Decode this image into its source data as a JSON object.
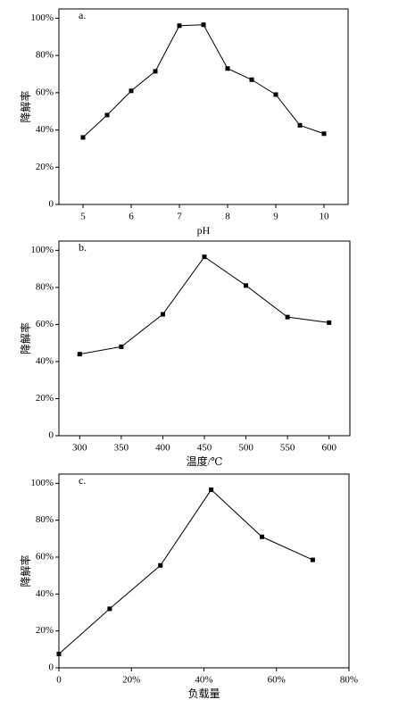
{
  "chart_data": [
    {
      "type": "line",
      "annotation": "a.",
      "xlabel": "pH",
      "ylabel": "降解率",
      "color": "#000000",
      "x": [
        5,
        5.5,
        6,
        6.5,
        7,
        7.5,
        8,
        8.5,
        9,
        9.5,
        10
      ],
      "values": [
        36,
        48,
        61,
        71.5,
        96,
        96.5,
        73,
        67,
        59,
        42.5,
        38
      ],
      "xlim": [
        4.5,
        10.5
      ],
      "xticks": [
        5,
        6,
        7,
        8,
        9,
        10
      ],
      "ylim": [
        0,
        105
      ],
      "yticks": [
        0,
        {
          "value": 20,
          "label": "20%"
        },
        {
          "value": 40,
          "label": "40%"
        },
        {
          "value": 60,
          "label": "60%"
        },
        {
          "value": 80,
          "label": "80%"
        },
        {
          "value": 100,
          "label": "100%"
        }
      ]
    },
    {
      "type": "line",
      "annotation": "b.",
      "xlabel": "温度/℃",
      "ylabel": "降解率",
      "color": "#000000",
      "x": [
        300,
        350,
        400,
        450,
        500,
        550,
        600
      ],
      "values": [
        44,
        48,
        65.5,
        96.5,
        81,
        64,
        61
      ],
      "xlim": [
        275,
        625
      ],
      "xticks": [
        300,
        350,
        400,
        450,
        500,
        550,
        600
      ],
      "ylim": [
        0,
        105
      ],
      "yticks": [
        0,
        {
          "value": 20,
          "label": "20%"
        },
        {
          "value": 40,
          "label": "40%"
        },
        {
          "value": 60,
          "label": "60%"
        },
        {
          "value": 80,
          "label": "80%"
        },
        {
          "value": 100,
          "label": "100%"
        }
      ]
    },
    {
      "type": "line",
      "annotation": "c.",
      "xlabel": "负载量",
      "ylabel": "降解率",
      "color": "#000000",
      "x": [
        0,
        14,
        28,
        42,
        56,
        70
      ],
      "values": [
        7.5,
        32,
        55.5,
        96.5,
        71,
        58.5
      ],
      "xlim": [
        0,
        80
      ],
      "xticks": [
        0,
        {
          "value": 20,
          "label": "20%"
        },
        {
          "value": 40,
          "label": "40%"
        },
        {
          "value": 60,
          "label": "60%"
        },
        {
          "value": 80,
          "label": "80%"
        }
      ],
      "ylim": [
        0,
        105
      ],
      "yticks": [
        0,
        {
          "value": 20,
          "label": "20%"
        },
        {
          "value": 40,
          "label": "40%"
        },
        {
          "value": 60,
          "label": "60%"
        },
        {
          "value": 80,
          "label": "80%"
        },
        {
          "value": 100,
          "label": "100%"
        }
      ]
    }
  ]
}
